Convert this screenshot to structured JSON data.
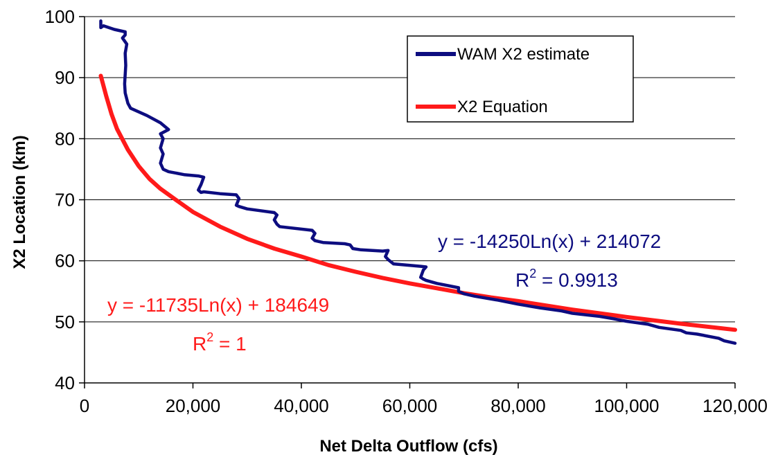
{
  "chart_data": {
    "type": "line",
    "xlabel": "Net Delta Outflow (cfs)",
    "ylabel": "X2 Location (km)",
    "xlim": [
      0,
      120000
    ],
    "ylim": [
      40,
      100
    ],
    "xticks": [
      0,
      20000,
      40000,
      60000,
      80000,
      100000,
      120000
    ],
    "xtick_labels": [
      "0",
      "20,000",
      "40,000",
      "60,000",
      "80,000",
      "100,000",
      "120,000"
    ],
    "yticks": [
      40,
      50,
      60,
      70,
      80,
      90,
      100
    ],
    "ytick_labels": [
      "40",
      "50",
      "60",
      "70",
      "80",
      "90",
      "100"
    ],
    "grid": "horizontal",
    "legend_position": "top-right",
    "series": [
      {
        "name": "WAM X2 estimate",
        "color": "#0d0d80",
        "x": [
          3000,
          3000,
          3500,
          5500,
          7500,
          7500,
          7000,
          7800,
          7500,
          7600,
          7400,
          7500,
          8000,
          8500,
          11500,
          14000,
          15500,
          14000,
          14500,
          14000,
          14500,
          14000,
          14500,
          15500,
          18500,
          21000,
          22000,
          21500,
          21000,
          21500,
          22000,
          25000,
          28000,
          28500,
          28000,
          28500,
          30000,
          35000,
          35500,
          35000,
          35500,
          36000,
          42000,
          42500,
          42000,
          42500,
          44000,
          48000,
          49000,
          49500,
          51000,
          55000,
          56000,
          55500,
          56000,
          57000,
          62000,
          63000,
          62500,
          62000,
          62500,
          63000,
          65000,
          69000,
          69000,
          70000,
          72000,
          76000,
          80000,
          84000,
          88000,
          90000,
          95000,
          97000,
          100000,
          104000,
          106000,
          110000,
          111000,
          113000,
          117000,
          118000,
          120000
        ],
        "y": [
          99.3,
          98.2,
          98.5,
          97.9,
          97.5,
          97.0,
          96.5,
          95.5,
          94.0,
          92.0,
          89.0,
          87.5,
          85.8,
          85.0,
          83.8,
          82.6,
          81.5,
          80.8,
          80.0,
          78.5,
          77.5,
          76.0,
          75.0,
          74.6,
          74.1,
          73.9,
          73.7,
          72.5,
          71.6,
          71.2,
          71.3,
          71.0,
          70.8,
          70.2,
          69.1,
          68.9,
          68.5,
          67.9,
          67.5,
          66.7,
          66.0,
          65.6,
          65.0,
          64.5,
          63.7,
          63.3,
          63.0,
          62.8,
          62.6,
          62.0,
          61.8,
          61.6,
          61.7,
          60.7,
          60.2,
          59.5,
          59.1,
          59.0,
          58.5,
          57.3,
          57.0,
          56.8,
          56.3,
          55.6,
          55.0,
          54.6,
          54.2,
          53.6,
          52.9,
          52.3,
          51.8,
          51.4,
          50.9,
          50.6,
          50.1,
          49.6,
          49.1,
          48.6,
          48.2,
          48.0,
          47.3,
          46.9,
          46.5
        ]
      },
      {
        "name": "X2 Equation",
        "color": "#ff1a1a",
        "x": [
          3000,
          4000,
          5000,
          6000,
          8000,
          10000,
          12000,
          14000,
          17000,
          20000,
          25000,
          30000,
          35000,
          40000,
          45000,
          50000,
          55000,
          60000,
          65000,
          70000,
          75000,
          80000,
          90000,
          100000,
          110000,
          120000
        ],
        "y": [
          90.3,
          87.0,
          84.0,
          81.6,
          78.2,
          75.5,
          73.4,
          71.8,
          69.9,
          68.0,
          65.6,
          63.6,
          62.0,
          60.7,
          59.3,
          58.2,
          57.2,
          56.3,
          55.5,
          54.7,
          54.0,
          53.4,
          52.0,
          50.8,
          49.7,
          48.7
        ]
      }
    ],
    "annotations": [
      {
        "line1": "y = -14250Ln(x) + 214072",
        "r_label": "R",
        "r_exp": "2",
        "r_value": " = 0.9913",
        "color": "#0d0d80"
      },
      {
        "line1": "y = -11735Ln(x) + 184649",
        "r_label": "R",
        "r_exp": "2",
        "r_value": " = 1",
        "color": "#ff1a1a"
      }
    ]
  }
}
